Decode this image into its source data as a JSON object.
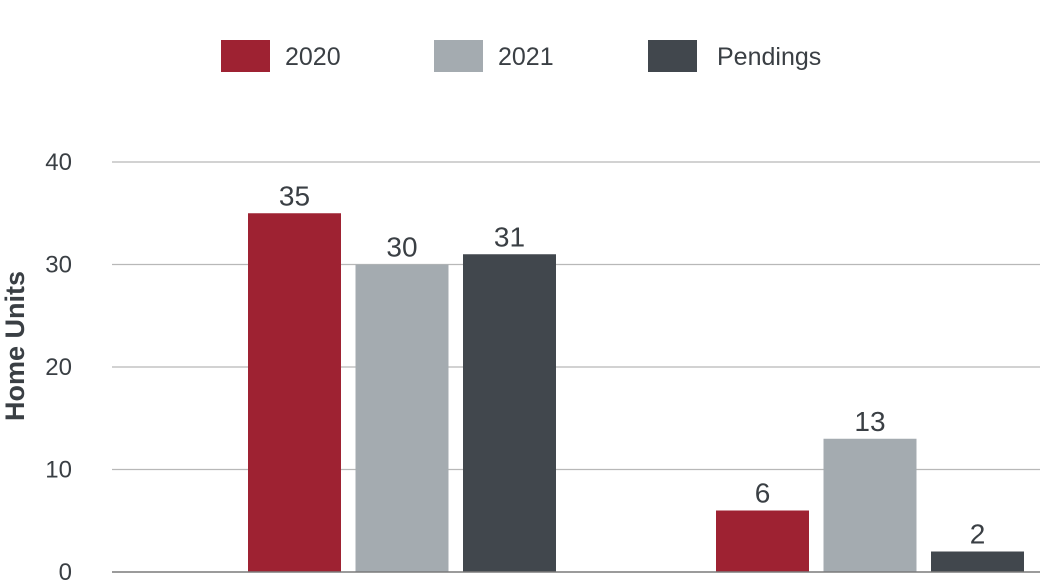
{
  "chart_data": {
    "type": "bar",
    "categories": [
      "",
      ""
    ],
    "series": [
      {
        "name": "2020",
        "color": "#9e2232",
        "values": [
          35,
          6
        ]
      },
      {
        "name": "2021",
        "color": "#a4abb0",
        "values": [
          30,
          13
        ]
      },
      {
        "name": "Pendings",
        "color": "#41474d",
        "values": [
          31,
          2
        ]
      }
    ],
    "title": "",
    "xlabel": "",
    "ylabel": "Home Units",
    "ylim": [
      0,
      40
    ],
    "yticks": [
      0,
      10,
      20,
      30,
      40
    ],
    "grid": true,
    "legend_position": "top-center",
    "data_labels": [
      [
        "35",
        "30",
        "31"
      ],
      [
        "6",
        "13",
        "2"
      ]
    ]
  }
}
